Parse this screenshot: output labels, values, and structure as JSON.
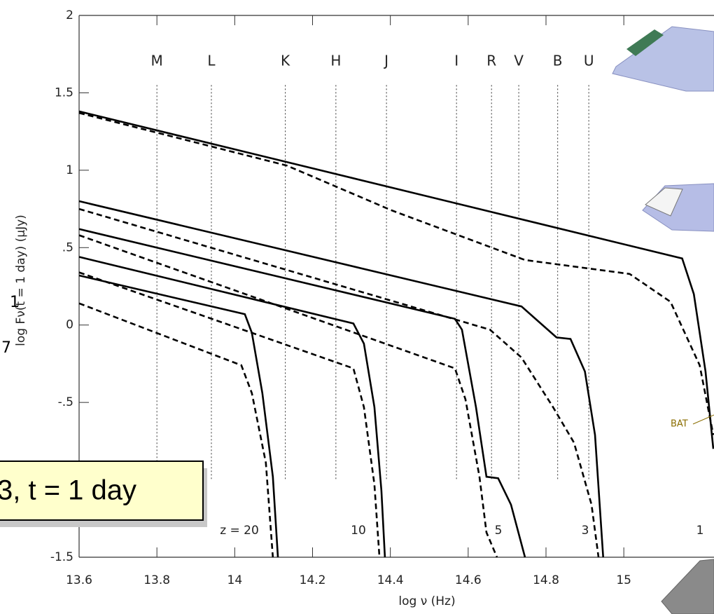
{
  "chart_data": {
    "type": "line",
    "xlabel": "log ν (Hz)",
    "ylabel": "log Fν(t = 1 day) (μJy)",
    "xlim": [
      13.6,
      15.23
    ],
    "ylim": [
      -1.5,
      2
    ],
    "xticks": [
      13.6,
      13.8,
      14,
      14.2,
      14.4,
      14.6,
      14.8,
      15
    ],
    "yticks": [
      2,
      1.5,
      1,
      {
        "value": 0.5,
        "label": ".5"
      },
      0,
      {
        "value": -0.5,
        "label": "-.5"
      },
      -1.5
    ],
    "grid": false,
    "bands": {
      "labels": [
        "M",
        "L",
        "K",
        "H",
        "J",
        "I",
        "R",
        "V",
        "B",
        "U"
      ],
      "x": [
        13.8,
        13.94,
        14.13,
        14.26,
        14.39,
        14.57,
        14.66,
        14.73,
        14.83,
        14.91
      ],
      "ylim": [
        -1.0,
        1.55
      ]
    },
    "curve_labels": [
      "z = 20",
      "10",
      "5",
      "3",
      "1"
    ],
    "series": [
      {
        "color": "#000000",
        "line_style": "solid",
        "x": [
          13.6,
          15.15,
          15.18,
          15.21,
          15.23
        ],
        "values": [
          1.38,
          0.43,
          0.2,
          -0.3,
          -0.8
        ]
      },
      {
        "color": "#000000",
        "line_style": "dashed",
        "x": [
          13.6,
          14.134,
          14.404,
          14.746,
          15.015,
          15.12,
          15.195,
          15.23
        ],
        "values": [
          1.37,
          1.03,
          0.74,
          0.42,
          0.33,
          0.15,
          -0.26,
          -0.71
        ]
      },
      {
        "color": "#000000",
        "line_style": "solid",
        "x": [
          13.6,
          14.737,
          14.827,
          14.863,
          14.9,
          14.926,
          14.947
        ],
        "values": [
          0.8,
          0.12,
          -0.08,
          -0.09,
          -0.3,
          -0.71,
          -1.5
        ]
      },
      {
        "color": "#000000",
        "line_style": "dashed",
        "x": [
          13.6,
          14.656,
          14.737,
          14.818,
          14.872,
          14.917,
          14.935
        ],
        "values": [
          0.75,
          -0.03,
          -0.21,
          -0.53,
          -0.76,
          -1.16,
          -1.5
        ]
      },
      {
        "color": "#000000",
        "line_style": "solid",
        "x": [
          13.6,
          14.566,
          14.584,
          14.62,
          14.647,
          14.677,
          14.71,
          14.746
        ],
        "values": [
          0.62,
          0.04,
          -0.03,
          -0.53,
          -0.98,
          -0.99,
          -1.16,
          -1.5
        ]
      },
      {
        "color": "#000000",
        "line_style": "dashed",
        "x": [
          13.6,
          14.566,
          14.593,
          14.629,
          14.647,
          14.674
        ],
        "values": [
          0.58,
          -0.28,
          -0.48,
          -0.98,
          -1.34,
          -1.5
        ]
      },
      {
        "color": "#000000",
        "line_style": "solid",
        "x": [
          13.6,
          14.305,
          14.332,
          14.359,
          14.377,
          14.386
        ],
        "values": [
          0.44,
          0.01,
          -0.12,
          -0.53,
          -1.07,
          -1.5
        ]
      },
      {
        "color": "#000000",
        "line_style": "dashed",
        "x": [
          13.6,
          14.305,
          14.332,
          14.359,
          14.372
        ],
        "values": [
          0.34,
          -0.28,
          -0.53,
          -1.03,
          -1.5
        ]
      },
      {
        "color": "#000000",
        "line_style": "solid",
        "x": [
          13.6,
          14.026,
          14.044,
          14.071,
          14.098,
          14.111
        ],
        "values": [
          0.32,
          0.07,
          -0.05,
          -0.44,
          -0.98,
          -1.5
        ]
      },
      {
        "color": "#000000",
        "line_style": "dashed",
        "x": [
          13.6,
          14.017,
          14.044,
          14.08,
          14.098
        ],
        "values": [
          0.14,
          -0.26,
          -0.44,
          -0.89,
          -1.5
        ]
      }
    ],
    "instrument_label": "BAT",
    "box_text": "3, t = 1 day",
    "fragments": [
      "1",
      "7"
    ]
  }
}
